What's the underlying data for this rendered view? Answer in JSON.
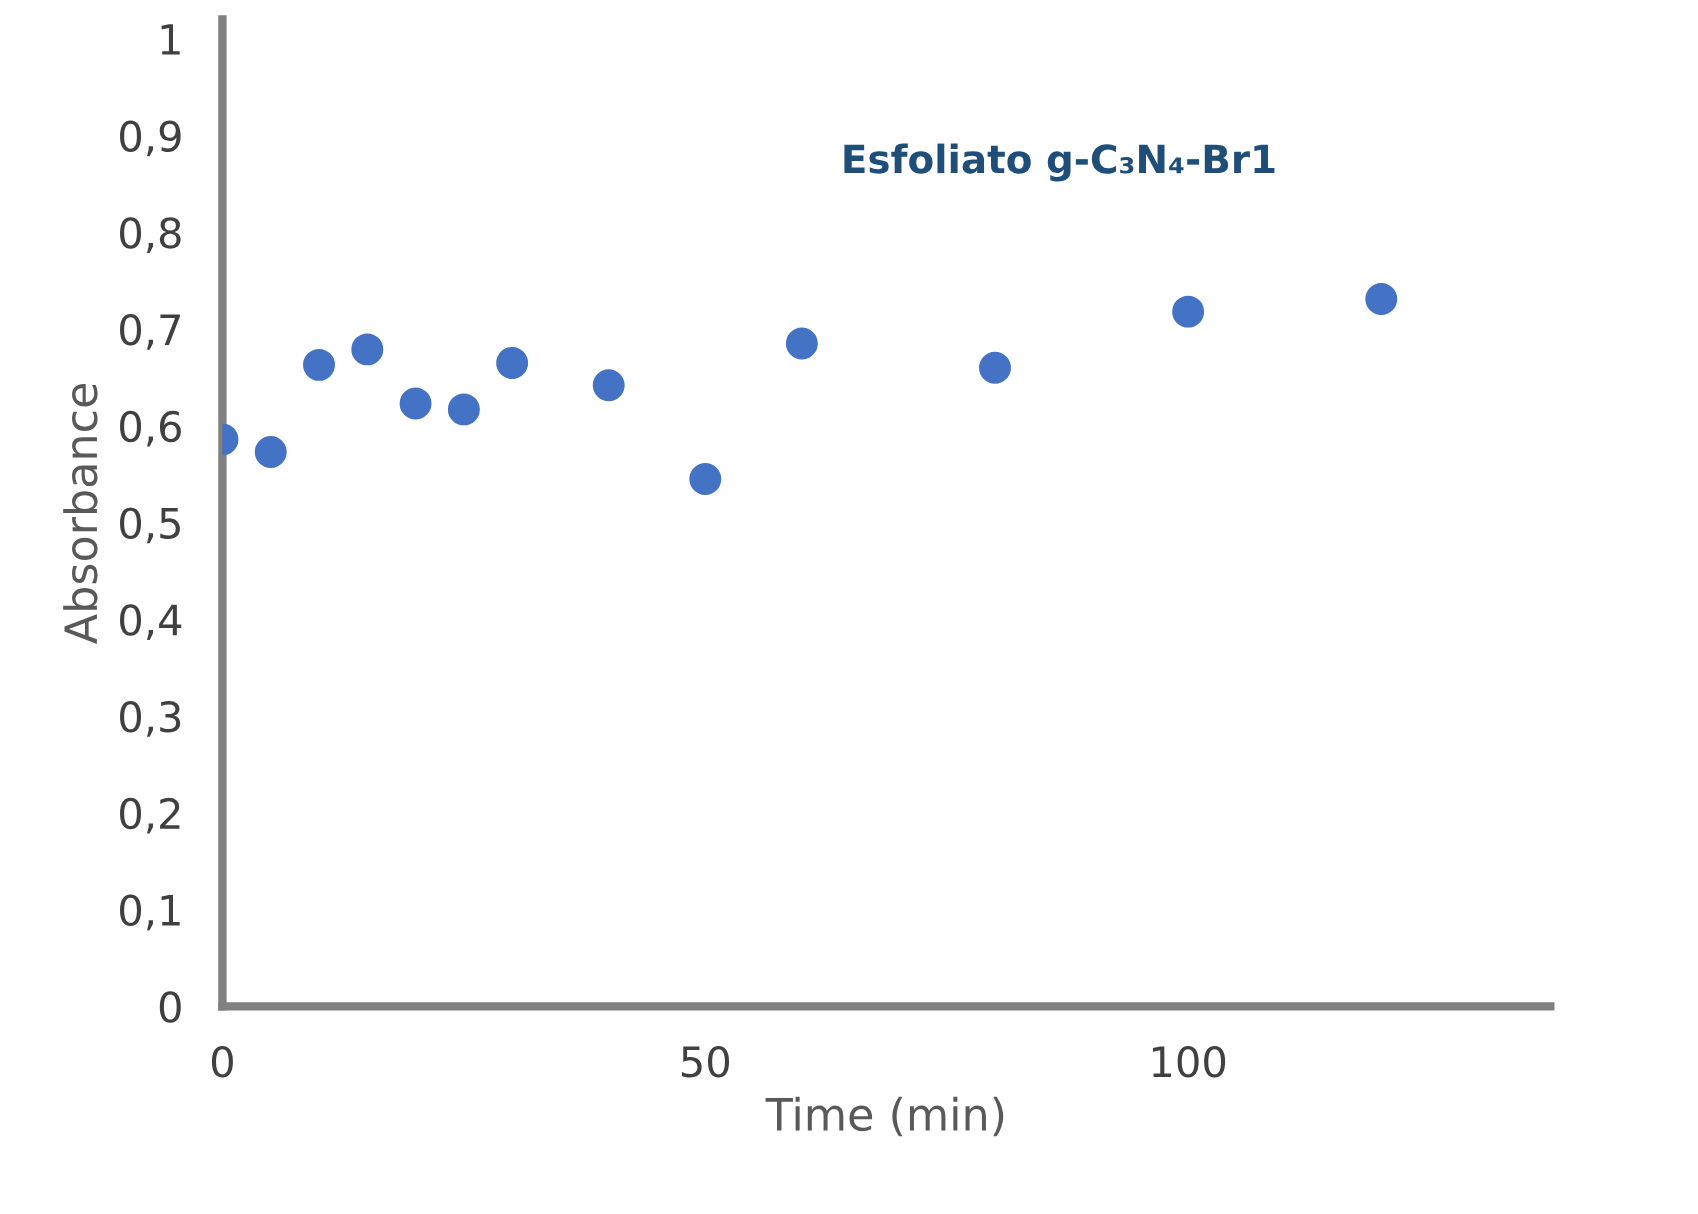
{
  "chart_data": {
    "type": "scatter",
    "title": "Esfoliato g-C₃N₄-Br1",
    "xlabel": "Time (min)",
    "ylabel": "Absorbance",
    "x": [
      0,
      5,
      10,
      15,
      20,
      25,
      30,
      40,
      50,
      60,
      80,
      100,
      120
    ],
    "series": [
      {
        "color": "#4472c4",
        "values": [
          0.586,
          0.573,
          0.663,
          0.679,
          0.623,
          0.617,
          0.665,
          0.642,
          0.545,
          0.685,
          0.66,
          0.718,
          0.731
        ]
      }
    ],
    "xlim": [
      0,
      137.5
    ],
    "ylim": [
      0,
      1.02
    ],
    "xticks": [
      0,
      50,
      100
    ],
    "yticks": [
      0,
      {
        "value": 0.1,
        "label": "0,1"
      },
      {
        "value": 0.2,
        "label": "0,2"
      },
      {
        "value": 0.3,
        "label": "0,3"
      },
      {
        "value": 0.4,
        "label": "0,4"
      },
      {
        "value": 0.5,
        "label": "0,5"
      },
      {
        "value": 0.6,
        "label": "0,6"
      },
      {
        "value": 0.7,
        "label": "0,7"
      },
      {
        "value": 0.8,
        "label": "0,8"
      },
      {
        "value": 0.9,
        "label": "0,9"
      },
      1
    ],
    "grid": false,
    "legend": false,
    "marker": "circle"
  }
}
